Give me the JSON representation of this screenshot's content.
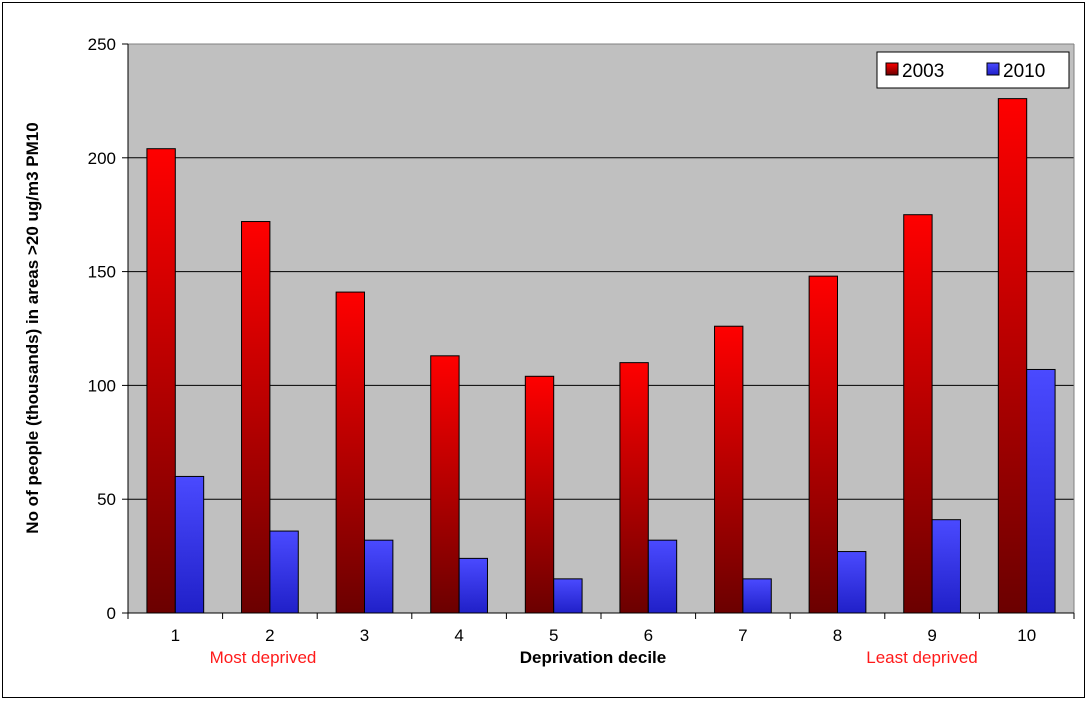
{
  "chart_data": {
    "type": "bar",
    "title": "",
    "xlabel": "Deprivation decile",
    "ylabel": "No of people (thousands) in areas >20 ug/m3 PM10",
    "categories": [
      "1",
      "2",
      "3",
      "4",
      "5",
      "6",
      "7",
      "8",
      "9",
      "10"
    ],
    "series": [
      {
        "name": "2003",
        "values": [
          204,
          172,
          141,
          113,
          104,
          110,
          126,
          148,
          175,
          226
        ],
        "color": "#ff0000"
      },
      {
        "name": "2010",
        "values": [
          60,
          36,
          32,
          24,
          15,
          32,
          15,
          27,
          41,
          107
        ],
        "color": "#3333ff"
      }
    ],
    "ylim": [
      0,
      250
    ],
    "yticks": [
      0,
      50,
      100,
      150,
      200,
      250
    ],
    "grid": true,
    "legend": "top-right",
    "plot_background": "#c0c0c0",
    "annotations": [
      {
        "text": "Most deprived",
        "category": "1-2",
        "color": "#ff1a1a"
      },
      {
        "text": "Least deprived",
        "category": "9-10",
        "color": "#ff1a1a"
      }
    ]
  }
}
